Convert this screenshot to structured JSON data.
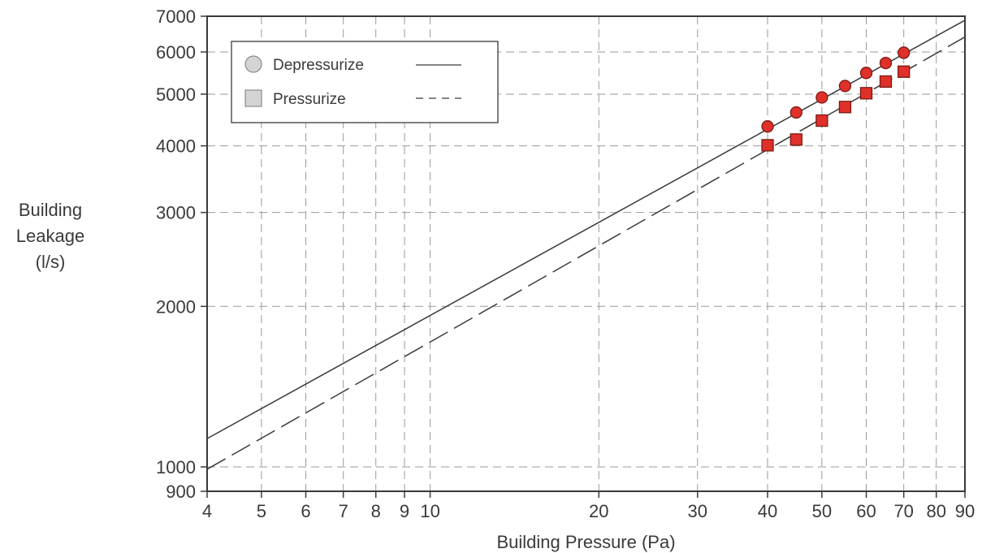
{
  "chart_data": {
    "type": "scatter",
    "title": "",
    "xlabel": "Building Pressure (Pa)",
    "ylabel_lines": [
      "Building",
      "Leakage",
      "(l/s)"
    ],
    "x_scale": "log",
    "y_scale": "log",
    "xlim": [
      4,
      90
    ],
    "ylim": [
      900,
      7000
    ],
    "x_ticks": [
      4,
      5,
      6,
      7,
      8,
      9,
      10,
      20,
      30,
      40,
      50,
      60,
      70,
      80,
      90
    ],
    "y_ticks": [
      900,
      1000,
      2000,
      3000,
      4000,
      5000,
      6000,
      7000
    ],
    "grid": true,
    "grid_style": "dashed",
    "legend": {
      "placement": "top-left",
      "entries": [
        {
          "label": "Depressurize",
          "marker": "circle",
          "line": "solid"
        },
        {
          "label": "Pressurize",
          "marker": "square",
          "line": "dashed"
        }
      ]
    },
    "series": [
      {
        "name": "Depressurize",
        "marker": "circle",
        "color": "#e0302a",
        "points": [
          {
            "x": 40,
            "y": 4350
          },
          {
            "x": 45,
            "y": 4620
          },
          {
            "x": 50,
            "y": 4930
          },
          {
            "x": 55,
            "y": 5180
          },
          {
            "x": 60,
            "y": 5480
          },
          {
            "x": 65,
            "y": 5720
          },
          {
            "x": 70,
            "y": 5980
          }
        ],
        "fit_line": {
          "style": "solid",
          "from": {
            "x": 4,
            "y": 1130
          },
          "to": {
            "x": 90,
            "y": 6880
          }
        }
      },
      {
        "name": "Pressurize",
        "marker": "square",
        "color": "#e0302a",
        "points": [
          {
            "x": 40,
            "y": 4010
          },
          {
            "x": 45,
            "y": 4110
          },
          {
            "x": 50,
            "y": 4460
          },
          {
            "x": 55,
            "y": 4730
          },
          {
            "x": 60,
            "y": 5020
          },
          {
            "x": 65,
            "y": 5280
          },
          {
            "x": 70,
            "y": 5510
          }
        ],
        "fit_line": {
          "style": "dashed",
          "from": {
            "x": 4,
            "y": 990
          },
          "to": {
            "x": 90,
            "y": 6400
          }
        }
      }
    ]
  }
}
